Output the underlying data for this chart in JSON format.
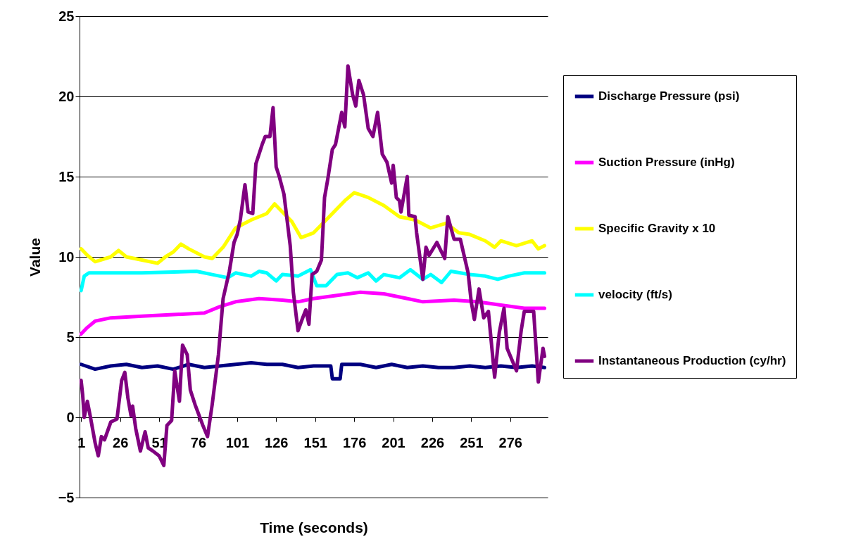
{
  "chart_data": {
    "type": "line",
    "xlabel": "Time (seconds)",
    "ylabel": "Value",
    "xlim": [
      0,
      300
    ],
    "xticks": [
      1,
      26,
      51,
      76,
      101,
      126,
      151,
      176,
      201,
      226,
      251,
      276
    ],
    "ylim": [
      -5,
      25
    ],
    "yticks": [
      -5,
      0,
      5,
      10,
      15,
      20,
      25
    ],
    "grid": "y",
    "legend": "right",
    "marker": "none",
    "line_style": "solid",
    "series": [
      {
        "name": "Discharge Pressure (psi)",
        "color": "#000080",
        "x": [
          1,
          10,
          20,
          30,
          40,
          50,
          60,
          70,
          80,
          90,
          100,
          110,
          120,
          130,
          140,
          150,
          161,
          162,
          167,
          168,
          180,
          190,
          200,
          210,
          220,
          230,
          240,
          250,
          260,
          270,
          280,
          290,
          298
        ],
        "values": [
          3.3,
          3.0,
          3.2,
          3.3,
          3.1,
          3.2,
          3.0,
          3.3,
          3.1,
          3.2,
          3.3,
          3.4,
          3.3,
          3.3,
          3.1,
          3.2,
          3.2,
          2.4,
          2.4,
          3.3,
          3.3,
          3.1,
          3.3,
          3.1,
          3.2,
          3.1,
          3.1,
          3.2,
          3.1,
          3.2,
          3.1,
          3.2,
          3.1
        ]
      },
      {
        "name": "Suction Pressure (inHg)",
        "color": "#ff00ff",
        "x": [
          1,
          5,
          10,
          20,
          40,
          60,
          80,
          90,
          100,
          115,
          130,
          140,
          150,
          165,
          180,
          195,
          210,
          220,
          240,
          255,
          270,
          285,
          298
        ],
        "values": [
          5.2,
          5.6,
          6.0,
          6.2,
          6.3,
          6.4,
          6.5,
          6.9,
          7.2,
          7.4,
          7.3,
          7.2,
          7.4,
          7.6,
          7.8,
          7.7,
          7.4,
          7.2,
          7.3,
          7.2,
          7.0,
          6.8,
          6.8
        ]
      },
      {
        "name": "Specific Gravity x 10",
        "color": "#ffff00",
        "x": [
          1,
          5,
          10,
          20,
          25,
          30,
          40,
          50,
          55,
          60,
          65,
          70,
          80,
          85,
          92,
          100,
          110,
          120,
          125,
          130,
          136,
          142,
          150,
          160,
          170,
          176,
          185,
          195,
          205,
          215,
          225,
          235,
          243,
          250,
          260,
          266,
          270,
          280,
          290,
          294,
          298
        ],
        "values": [
          10.5,
          10.1,
          9.7,
          10.0,
          10.4,
          10.0,
          9.8,
          9.6,
          10.0,
          10.3,
          10.8,
          10.5,
          10.0,
          9.9,
          10.6,
          11.8,
          12.3,
          12.7,
          13.3,
          12.8,
          12.2,
          11.2,
          11.5,
          12.5,
          13.5,
          14.0,
          13.7,
          13.2,
          12.5,
          12.3,
          11.8,
          12.1,
          11.5,
          11.4,
          11.0,
          10.6,
          11.0,
          10.7,
          11.0,
          10.5,
          10.7
        ]
      },
      {
        "name": "velocity (ft/s)",
        "color": "#00ffff",
        "x": [
          1,
          3,
          6,
          40,
          75,
          85,
          95,
          100,
          110,
          115,
          120,
          126,
          130,
          140,
          148,
          152,
          158,
          165,
          172,
          178,
          185,
          190,
          195,
          205,
          212,
          220,
          225,
          232,
          238,
          250,
          260,
          268,
          275,
          285,
          298
        ],
        "values": [
          7.9,
          8.8,
          9.0,
          9.0,
          9.1,
          8.9,
          8.7,
          9.0,
          8.8,
          9.1,
          9.0,
          8.5,
          8.9,
          8.8,
          9.2,
          8.2,
          8.2,
          8.9,
          9.0,
          8.7,
          9.0,
          8.5,
          8.9,
          8.7,
          9.2,
          8.6,
          8.9,
          8.4,
          9.1,
          8.9,
          8.8,
          8.6,
          8.8,
          9.0,
          9.0
        ]
      },
      {
        "name": "Instantaneous Production (cy/hr)",
        "color": "#800080",
        "x": [
          1,
          2,
          3,
          5,
          7,
          10,
          12,
          14,
          16,
          20,
          24,
          27,
          29,
          31,
          33,
          34,
          36,
          39,
          42,
          44,
          47,
          51,
          54,
          56,
          59,
          61,
          64,
          66,
          69,
          71,
          74,
          79,
          82,
          85,
          89,
          92,
          96,
          99,
          101,
          103,
          106,
          108,
          111,
          113,
          117,
          119,
          122,
          124,
          126,
          128,
          131,
          135,
          137,
          140,
          143,
          145,
          147,
          149,
          152,
          155,
          157,
          159,
          162,
          164,
          168,
          170,
          172,
          175,
          177,
          179,
          182,
          185,
          188,
          191,
          194,
          197,
          200,
          201,
          203,
          205,
          206,
          210,
          211,
          215,
          216,
          220,
          222,
          224,
          229,
          230,
          234,
          236,
          240,
          244,
          249,
          251,
          253,
          256,
          259,
          262,
          266,
          269,
          272,
          274,
          280,
          283,
          285,
          291,
          294,
          297,
          298
        ],
        "values": [
          2.3,
          1.4,
          0,
          1.0,
          0,
          -1.6,
          -2.4,
          -1.2,
          -1.4,
          -0.3,
          -0.1,
          2.3,
          2.8,
          1.2,
          0.1,
          0.7,
          -0.7,
          -2.1,
          -0.9,
          -1.9,
          -2.1,
          -2.4,
          -3.0,
          -0.5,
          -0.2,
          2.9,
          1.0,
          4.5,
          3.9,
          1.7,
          0.8,
          -0.5,
          -1.2,
          0.8,
          3.9,
          7.4,
          9.1,
          10.9,
          11.4,
          12.3,
          14.5,
          12.8,
          12.7,
          15.8,
          17.0,
          17.5,
          17.5,
          19.3,
          15.6,
          15.0,
          13.9,
          10.7,
          7.8,
          5.4,
          6.2,
          6.7,
          5.8,
          8.9,
          9.1,
          9.8,
          13.7,
          14.8,
          16.7,
          17.0,
          19.0,
          18.1,
          21.9,
          20.1,
          19.4,
          21.0,
          20.1,
          18.0,
          17.5,
          19.0,
          16.4,
          15.9,
          14.6,
          15.7,
          13.7,
          13.5,
          12.8,
          15.0,
          12.6,
          12.5,
          11.5,
          8.6,
          10.6,
          10.1,
          10.9,
          10.7,
          9.9,
          12.5,
          11.1,
          11.1,
          9.0,
          7.2,
          6.1,
          8.0,
          6.2,
          6.6,
          2.5,
          5.3,
          6.8,
          4.3,
          2.9,
          5.4,
          6.6,
          6.6,
          2.2,
          4.3,
          3.8
        ]
      }
    ]
  }
}
